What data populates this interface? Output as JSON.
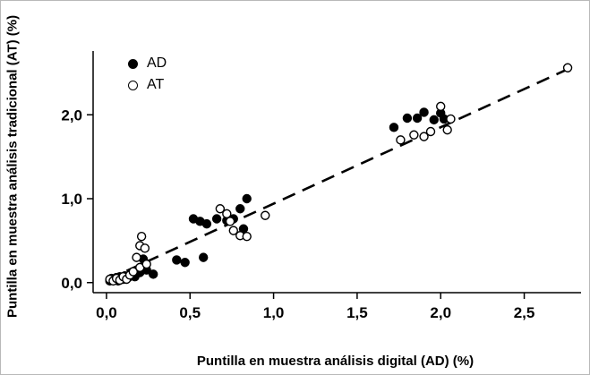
{
  "chart_data": {
    "type": "scatter",
    "title": "",
    "xlabel": "Puntilla en muestra análisis digital (AD) (%)",
    "ylabel": "Puntilla en muestra análisis tradicional (AT) (%)",
    "xlim": [
      -0.08,
      2.84
    ],
    "ylim": [
      -0.12,
      2.76
    ],
    "x_tick_values": [
      0,
      0.5,
      1,
      1.5,
      2,
      2.5
    ],
    "x_tick_labels": [
      "0,0",
      "0,5",
      "1,0",
      "1,5",
      "2,0",
      "2,5"
    ],
    "y_tick_values": [
      0,
      1,
      2
    ],
    "y_tick_labels": [
      "0,0",
      "1,0",
      "2,0"
    ],
    "grid": false,
    "legend_position": "top-left-inside",
    "legend": [
      {
        "label": "AD",
        "marker": "filled-circle"
      },
      {
        "label": "AT",
        "marker": "open-circle"
      }
    ],
    "trend_line": {
      "style": "dashed",
      "points": [
        [
          0.12,
          0.14
        ],
        [
          2.8,
          2.58
        ]
      ]
    },
    "series": [
      {
        "name": "AD",
        "marker": "filled-circle",
        "color": "#000000",
        "points": [
          [
            0.02,
            0.02
          ],
          [
            0.03,
            0.05
          ],
          [
            0.05,
            0.03
          ],
          [
            0.06,
            0.06
          ],
          [
            0.07,
            0.02
          ],
          [
            0.08,
            0.07
          ],
          [
            0.1,
            0.04
          ],
          [
            0.11,
            0.08
          ],
          [
            0.13,
            0.06
          ],
          [
            0.15,
            0.1
          ],
          [
            0.17,
            0.07
          ],
          [
            0.2,
            0.12
          ],
          [
            0.24,
            0.15
          ],
          [
            0.28,
            0.1
          ],
          [
            0.22,
            0.28
          ],
          [
            0.42,
            0.27
          ],
          [
            0.47,
            0.24
          ],
          [
            0.58,
            0.3
          ],
          [
            0.52,
            0.76
          ],
          [
            0.56,
            0.73
          ],
          [
            0.6,
            0.7
          ],
          [
            0.66,
            0.76
          ],
          [
            0.72,
            0.74
          ],
          [
            0.76,
            0.76
          ],
          [
            0.8,
            0.88
          ],
          [
            0.84,
            1.0
          ],
          [
            0.82,
            0.64
          ],
          [
            1.72,
            1.85
          ],
          [
            1.8,
            1.96
          ],
          [
            1.86,
            1.96
          ],
          [
            1.9,
            2.03
          ],
          [
            1.96,
            1.94
          ],
          [
            2.0,
            2.02
          ],
          [
            2.02,
            1.95
          ]
        ]
      },
      {
        "name": "AT",
        "marker": "open-circle",
        "color": "#000000",
        "points": [
          [
            0.02,
            0.04
          ],
          [
            0.04,
            0.02
          ],
          [
            0.06,
            0.05
          ],
          [
            0.08,
            0.03
          ],
          [
            0.1,
            0.07
          ],
          [
            0.12,
            0.04
          ],
          [
            0.14,
            0.09
          ],
          [
            0.16,
            0.13
          ],
          [
            0.2,
            0.18
          ],
          [
            0.24,
            0.22
          ],
          [
            0.18,
            0.3
          ],
          [
            0.2,
            0.44
          ],
          [
            0.21,
            0.55
          ],
          [
            0.23,
            0.41
          ],
          [
            0.68,
            0.88
          ],
          [
            0.72,
            0.82
          ],
          [
            0.74,
            0.73
          ],
          [
            0.76,
            0.62
          ],
          [
            0.8,
            0.56
          ],
          [
            0.84,
            0.55
          ],
          [
            0.95,
            0.8
          ],
          [
            1.76,
            1.7
          ],
          [
            1.84,
            1.76
          ],
          [
            1.9,
            1.74
          ],
          [
            1.94,
            1.8
          ],
          [
            2.0,
            2.1
          ],
          [
            2.04,
            1.82
          ],
          [
            2.06,
            1.95
          ],
          [
            2.76,
            2.56
          ]
        ]
      }
    ]
  }
}
